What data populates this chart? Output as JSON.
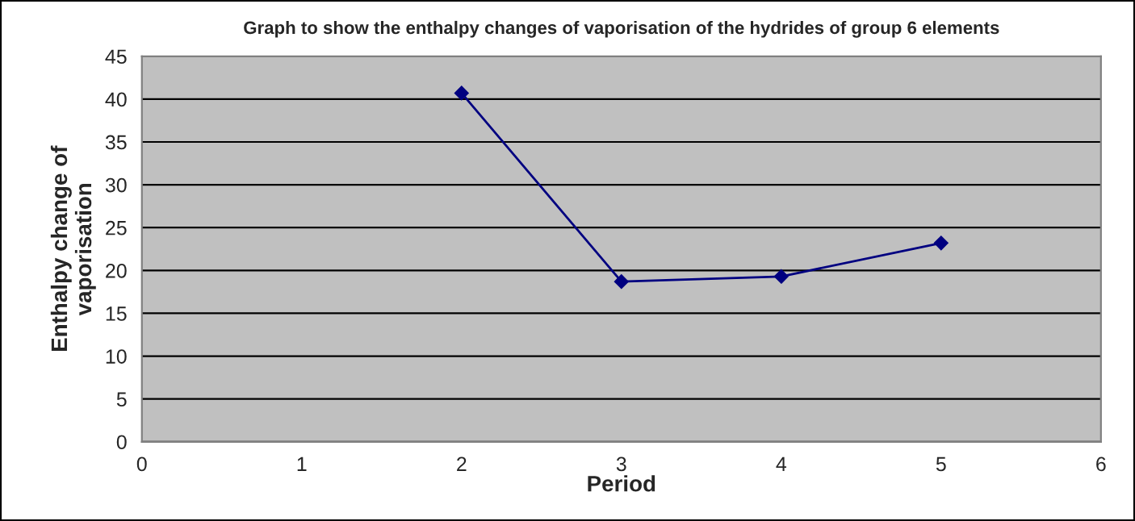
{
  "chart_data": {
    "type": "line",
    "title": "Graph to show the enthalpy changes of vaporisation of the hydrides of group 6 elements",
    "xlabel": "Period",
    "ylabel": "Enthalpy change of\nvaporisation",
    "x": [
      2,
      3,
      4,
      5
    ],
    "series": [
      {
        "color": "#000080",
        "values": [
          40.7,
          18.7,
          19.3,
          23.2
        ]
      }
    ],
    "xlim": [
      0,
      6
    ],
    "xticks": [
      0,
      1,
      2,
      3,
      4,
      5,
      6
    ],
    "ylim": [
      0,
      45
    ],
    "yticks": [
      0,
      5,
      10,
      15,
      20,
      25,
      30,
      35,
      40,
      45
    ],
    "grid": "y",
    "marker": "diamond",
    "line_style": "solid",
    "legend": false
  }
}
